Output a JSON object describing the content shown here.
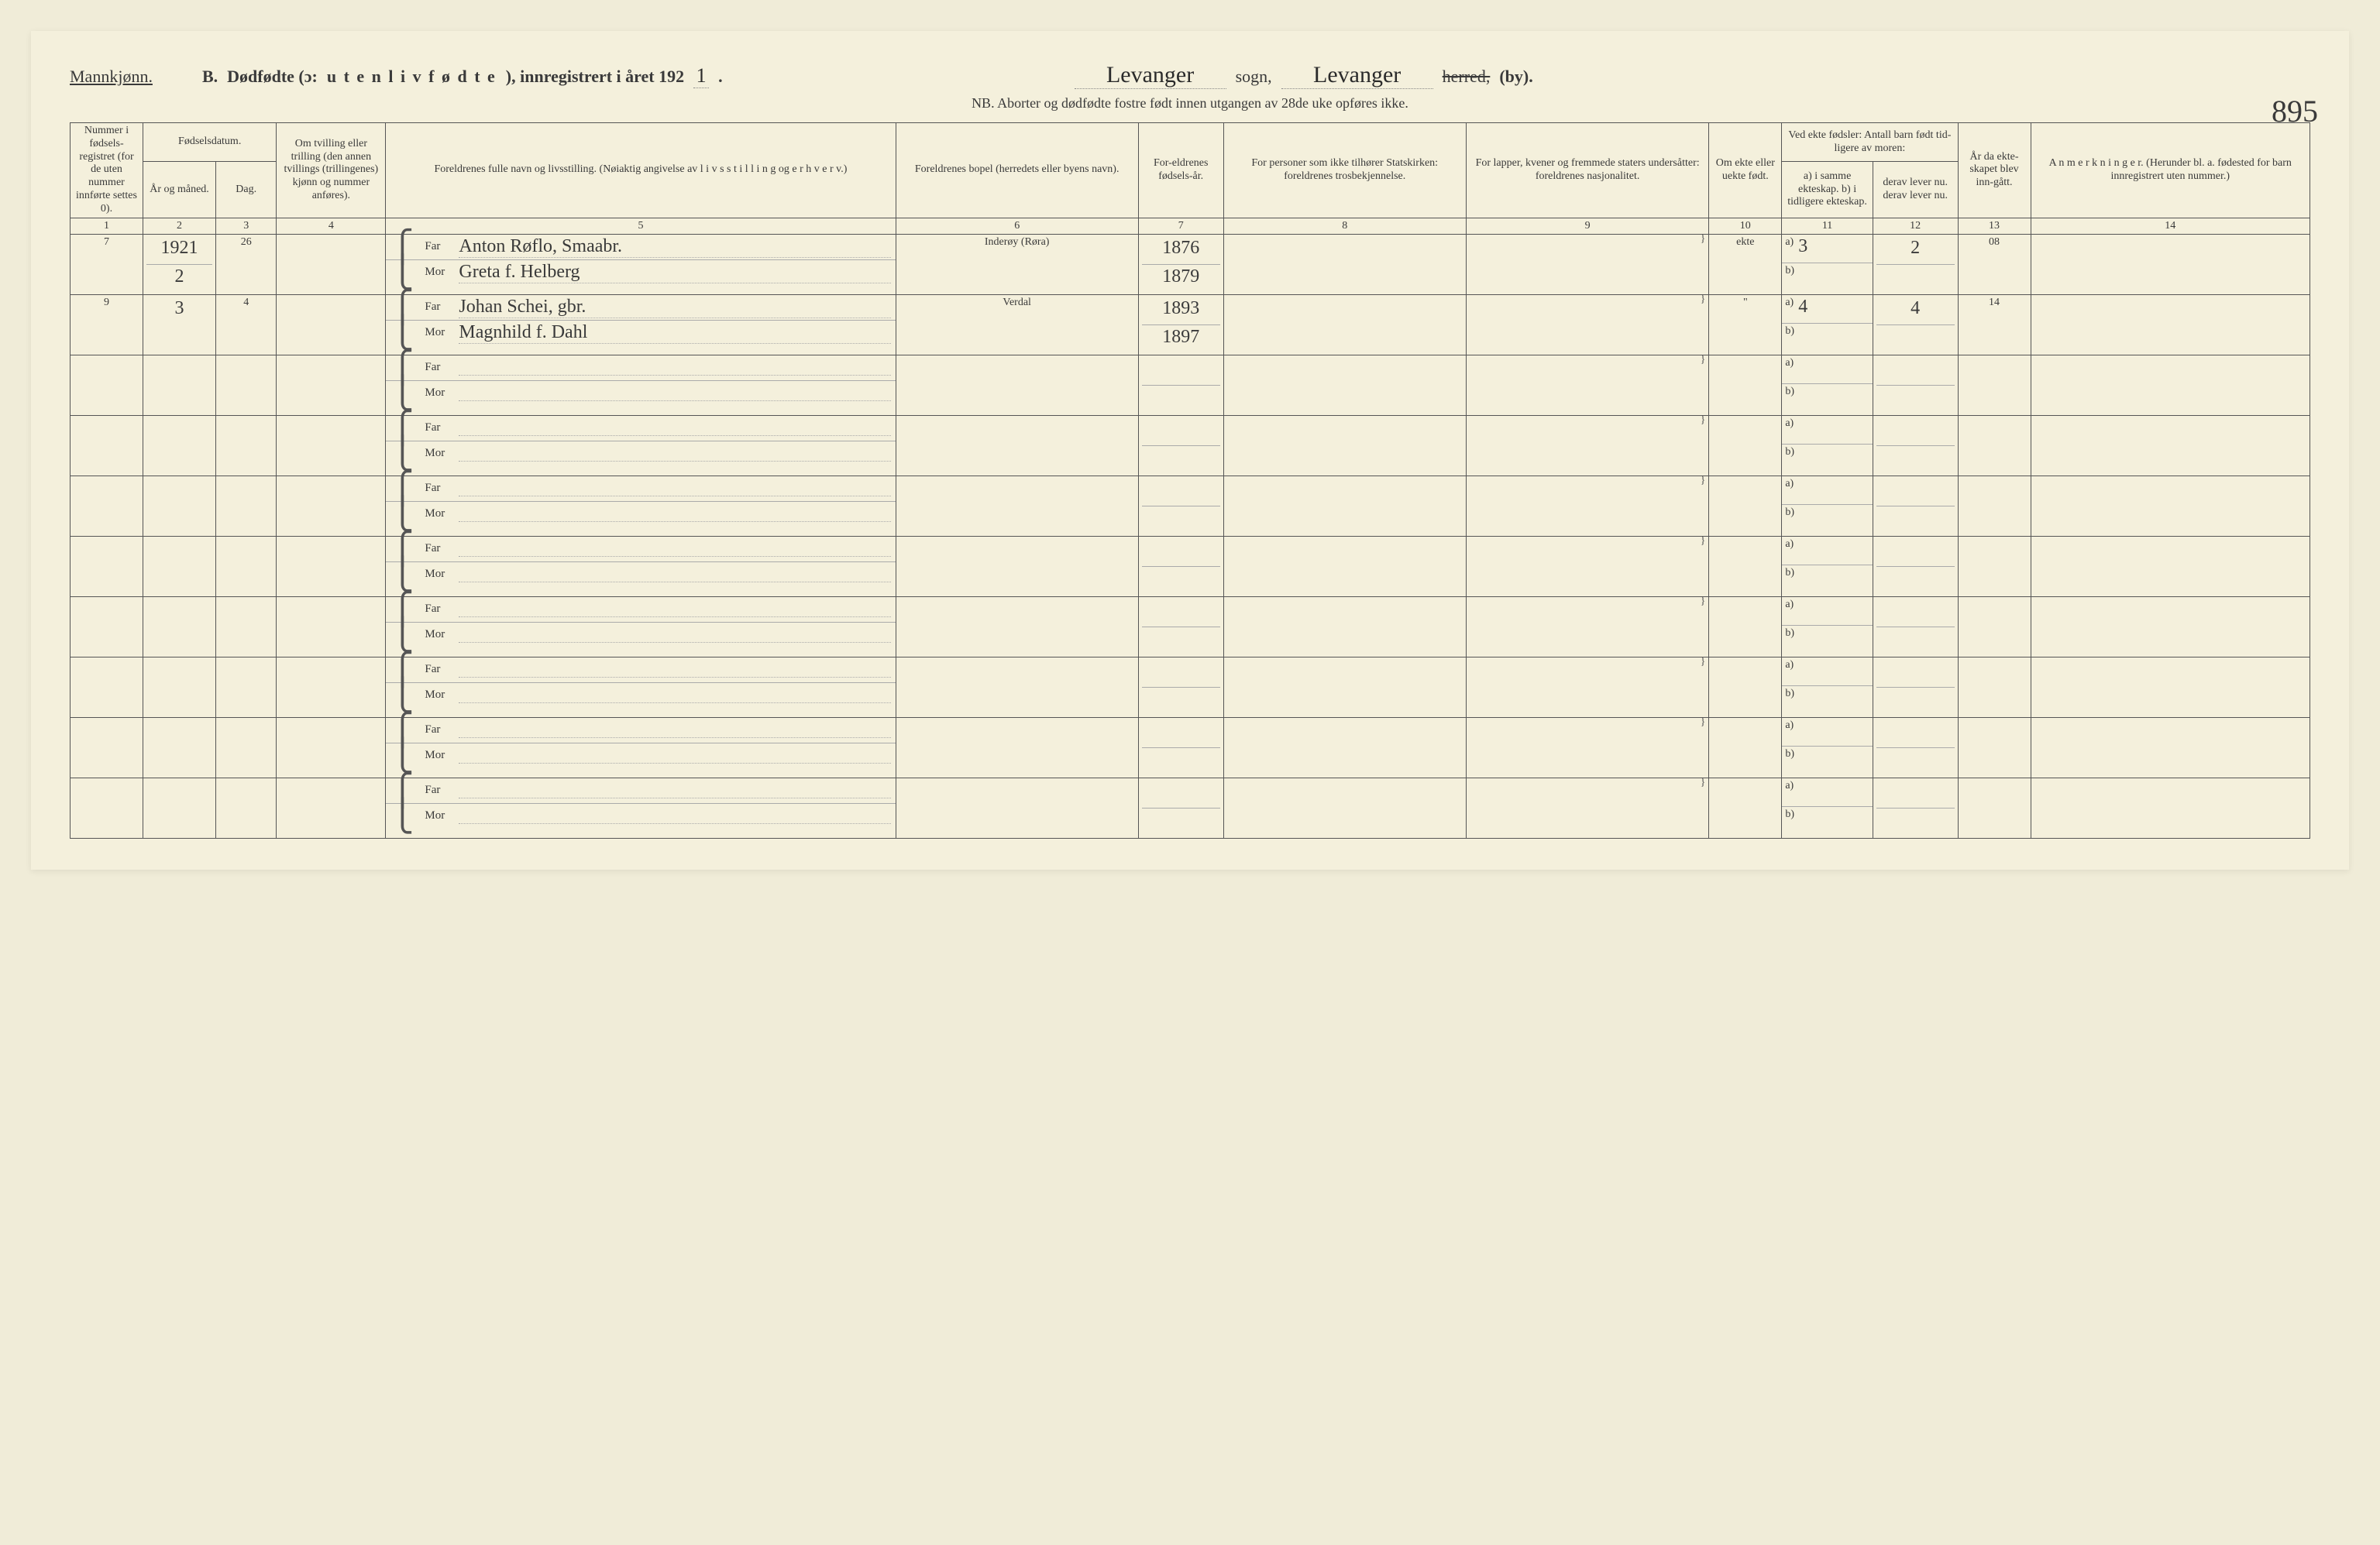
{
  "header": {
    "gender_label": "Mannkjønn.",
    "section_letter": "B.",
    "title_prefix": "Dødfødte (ɔ:",
    "title_spaced": "u t e n  l i v  f ø d t e",
    "title_suffix": "), innregistrert i året 192",
    "year_digit": "1",
    "sogn_value": "Levanger",
    "sogn_label": "sogn,",
    "herred_value": "Levanger",
    "herred_strike": "herred,",
    "by_label": "(by).",
    "sub_note": "NB.  Aborter og dødfødte fostre født innen utgangen av 28de uke opføres ikke.",
    "page_number": "895"
  },
  "columns": {
    "c1": "Nummer i fødsels-registret (for de uten nummer innførte settes 0).",
    "c2_top": "Fødselsdatum.",
    "c2": "År og måned.",
    "c3": "Dag.",
    "c4": "Om tvilling eller trilling (den annen tvillings (trillingenes) kjønn og nummer anføres).",
    "c5": "Foreldrenes fulle navn og livsstilling. (Nøiaktig angivelse av  l i v s s t i l l i n g  og  e r h v e r v.)",
    "c6": "Foreldrenes bopel (herredets eller byens navn).",
    "c7": "For-eldrenes fødsels-år.",
    "c8": "For personer som ikke tilhører Statskirken: foreldrenes trosbekjennelse.",
    "c9": "For lapper, kvener og fremmede staters undersåtter: foreldrenes nasjonalitet.",
    "c10": "Om ekte eller uekte født.",
    "c11_top": "Ved ekte fødsler: Antall barn født tid-ligere av moren:",
    "c11": "a) i samme ekteskap. b) i tidligere ekteskap.",
    "c12": "derav lever nu. derav lever nu.",
    "c13": "År da ekte-skapet blev inn-gått.",
    "c14": "A n m e r k n i n g e r. (Herunder bl. a. fødested for barn innregistrert uten nummer.)"
  },
  "colnums": [
    "1",
    "2",
    "3",
    "4",
    "5",
    "6",
    "7",
    "8",
    "9",
    "10",
    "11",
    "12",
    "13",
    "14"
  ],
  "far_label": "Far",
  "mor_label": "Mor",
  "a_label": "a)",
  "b_label": "b)",
  "rows": [
    {
      "num": "7",
      "year_month_top": "1921",
      "year_month": "2",
      "day": "26",
      "twin": "",
      "far": "Anton Røflo, Smaabr.",
      "mor": "Greta f. Helberg",
      "bopel": "Inderøy (Røra)",
      "far_year": "1876",
      "mor_year": "1879",
      "ekte": "ekte",
      "a_val": "3",
      "derav_a": "2",
      "b_val": "",
      "derav_b": "",
      "ekteskap_year": "08",
      "anm": ""
    },
    {
      "num": "9",
      "year_month_top": "",
      "year_month": "3",
      "day": "4",
      "twin": "",
      "far": "Johan Schei, gbr.",
      "mor": "Magnhild f. Dahl",
      "bopel": "Verdal",
      "far_year": "1893",
      "mor_year": "1897",
      "ekte": "\"",
      "a_val": "4",
      "derav_a": "4",
      "b_val": "",
      "derav_b": "",
      "ekteskap_year": "14",
      "anm": ""
    },
    {
      "num": "",
      "year_month": "",
      "day": "",
      "twin": "",
      "far": "",
      "mor": "",
      "bopel": "",
      "far_year": "",
      "mor_year": "",
      "ekte": "",
      "a_val": "",
      "derav_a": "",
      "b_val": "",
      "derav_b": "",
      "ekteskap_year": "",
      "anm": ""
    },
    {
      "num": "",
      "year_month": "",
      "day": "",
      "twin": "",
      "far": "",
      "mor": "",
      "bopel": "",
      "far_year": "",
      "mor_year": "",
      "ekte": "",
      "a_val": "",
      "derav_a": "",
      "b_val": "",
      "derav_b": "",
      "ekteskap_year": "",
      "anm": ""
    },
    {
      "num": "",
      "year_month": "",
      "day": "",
      "twin": "",
      "far": "",
      "mor": "",
      "bopel": "",
      "far_year": "",
      "mor_year": "",
      "ekte": "",
      "a_val": "",
      "derav_a": "",
      "b_val": "",
      "derav_b": "",
      "ekteskap_year": "",
      "anm": ""
    },
    {
      "num": "",
      "year_month": "",
      "day": "",
      "twin": "",
      "far": "",
      "mor": "",
      "bopel": "",
      "far_year": "",
      "mor_year": "",
      "ekte": "",
      "a_val": "",
      "derav_a": "",
      "b_val": "",
      "derav_b": "",
      "ekteskap_year": "",
      "anm": ""
    },
    {
      "num": "",
      "year_month": "",
      "day": "",
      "twin": "",
      "far": "",
      "mor": "",
      "bopel": "",
      "far_year": "",
      "mor_year": "",
      "ekte": "",
      "a_val": "",
      "derav_a": "",
      "b_val": "",
      "derav_b": "",
      "ekteskap_year": "",
      "anm": ""
    },
    {
      "num": "",
      "year_month": "",
      "day": "",
      "twin": "",
      "far": "",
      "mor": "",
      "bopel": "",
      "far_year": "",
      "mor_year": "",
      "ekte": "",
      "a_val": "",
      "derav_a": "",
      "b_val": "",
      "derav_b": "",
      "ekteskap_year": "",
      "anm": ""
    },
    {
      "num": "",
      "year_month": "",
      "day": "",
      "twin": "",
      "far": "",
      "mor": "",
      "bopel": "",
      "far_year": "",
      "mor_year": "",
      "ekte": "",
      "a_val": "",
      "derav_a": "",
      "b_val": "",
      "derav_b": "",
      "ekteskap_year": "",
      "anm": ""
    },
    {
      "num": "",
      "year_month": "",
      "day": "",
      "twin": "",
      "far": "",
      "mor": "",
      "bopel": "",
      "far_year": "",
      "mor_year": "",
      "ekte": "",
      "a_val": "",
      "derav_a": "",
      "b_val": "",
      "derav_b": "",
      "ekteskap_year": "",
      "anm": ""
    }
  ]
}
